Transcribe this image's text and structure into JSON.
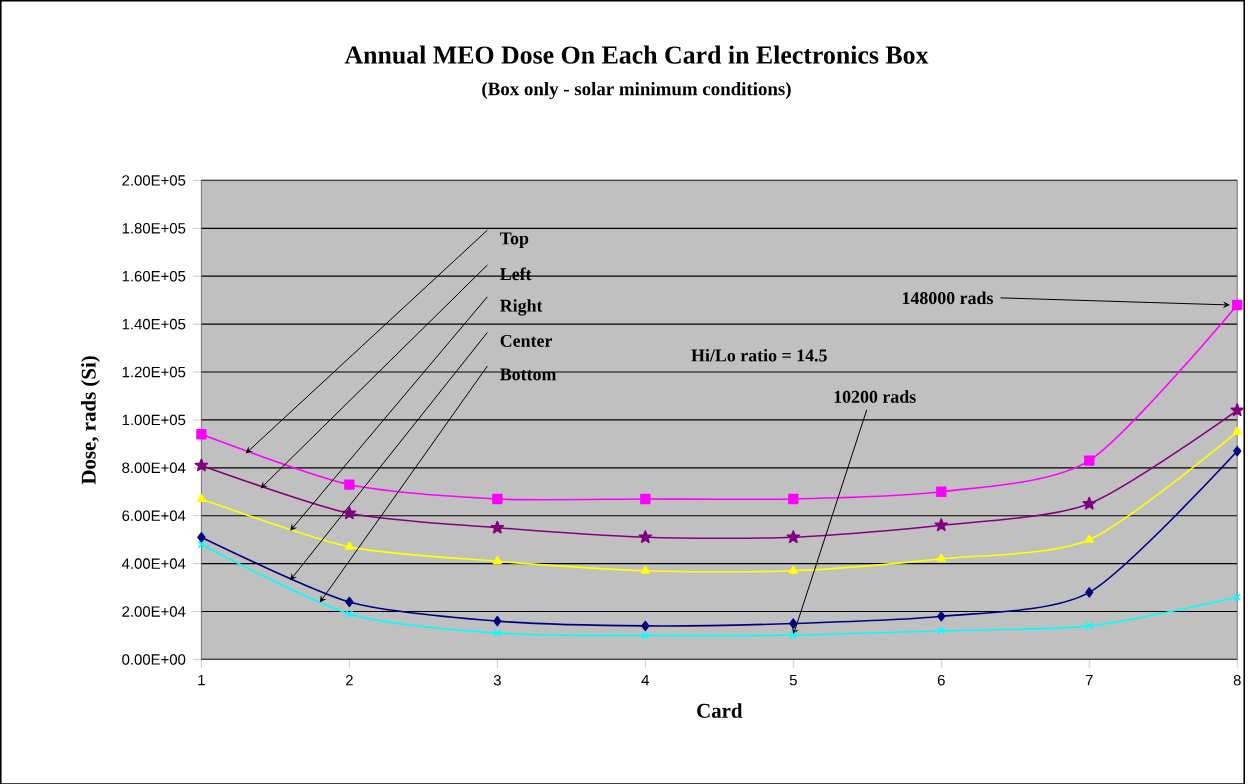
{
  "chart_data": {
    "type": "line",
    "title": "Annual MEO Dose On Each Card in Electronics Box",
    "subtitle": "(Box only - solar minimum conditions)",
    "xlabel": "Card",
    "ylabel": "Dose, rads (Si)",
    "x": [
      1,
      2,
      3,
      4,
      5,
      6,
      7,
      8
    ],
    "series": [
      {
        "name": "Top",
        "color": "#ff00ff",
        "marker": "square",
        "values": [
          94000,
          73000,
          67000,
          67000,
          67000,
          70000,
          83000,
          148000
        ]
      },
      {
        "name": "Left",
        "color": "#800080",
        "marker": "star",
        "values": [
          81000,
          61000,
          55000,
          51000,
          51000,
          56000,
          65000,
          104000
        ]
      },
      {
        "name": "Right",
        "color": "#ffff00",
        "marker": "triangle",
        "values": [
          67000,
          47000,
          41000,
          37000,
          37000,
          42000,
          50000,
          95000
        ]
      },
      {
        "name": "Center",
        "color": "#000080",
        "marker": "diamond",
        "values": [
          51000,
          24000,
          16000,
          14000,
          15000,
          18000,
          28000,
          87000
        ]
      },
      {
        "name": "Bottom",
        "color": "#00ffff",
        "marker": "cross",
        "values": [
          48000,
          19000,
          11000,
          10000,
          10200,
          12000,
          14000,
          26000
        ]
      }
    ],
    "xlim": [
      1,
      8
    ],
    "xticks": [
      1,
      2,
      3,
      4,
      5,
      6,
      7,
      8
    ],
    "ylim": [
      0,
      200000
    ],
    "yticks": [
      {
        "value": 0,
        "label": "0.00E+00"
      },
      {
        "value": 20000,
        "label": "2.00E+04"
      },
      {
        "value": 40000,
        "label": "4.00E+04"
      },
      {
        "value": 60000,
        "label": "6.00E+04"
      },
      {
        "value": 80000,
        "label": "8.00E+04"
      },
      {
        "value": 100000,
        "label": "1.00E+05"
      },
      {
        "value": 120000,
        "label": "1.20E+05"
      },
      {
        "value": 140000,
        "label": "1.40E+05"
      },
      {
        "value": 160000,
        "label": "1.60E+05"
      },
      {
        "value": 180000,
        "label": "1.80E+05"
      },
      {
        "value": 200000,
        "label": "2.00E+05"
      }
    ],
    "grid": "y",
    "annotations": [
      {
        "text": "148000 rads",
        "x": 8,
        "y": 148000
      },
      {
        "text": "10200 rads",
        "x": 5,
        "y": 10200
      },
      "Hi/Lo ratio = 14.5"
    ]
  }
}
